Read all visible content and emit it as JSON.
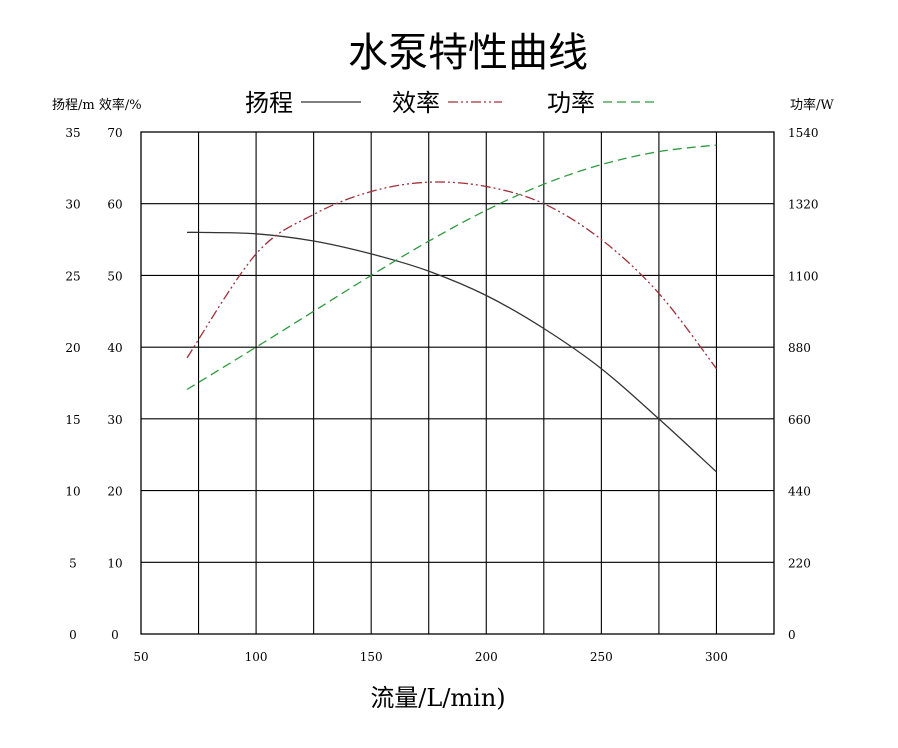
{
  "chart_data": {
    "type": "line",
    "title": "水泵特性曲线",
    "xlabel": "流量/L/min)",
    "ylabel_left": "扬程/m 效率/%",
    "ylabel_right": "功率/W",
    "xlim": [
      50,
      325
    ],
    "x_ticks": [
      50,
      100,
      150,
      200,
      250,
      300
    ],
    "y_head_ticks": [
      0,
      5,
      10,
      15,
      20,
      25,
      30,
      35
    ],
    "y_eff_ticks": [
      0,
      10,
      20,
      30,
      40,
      50,
      60,
      70
    ],
    "y_power_ticks": [
      0,
      220,
      440,
      660,
      880,
      1100,
      1320,
      1540
    ],
    "ylim_head": [
      0,
      35
    ],
    "ylim_eff": [
      0,
      70
    ],
    "ylim_power": [
      0,
      1540
    ],
    "grid": true,
    "legend_position": "top",
    "series": [
      {
        "name": "扬程",
        "axis": "head",
        "color": "#333333",
        "style": "solid",
        "x": [
          70,
          75,
          100,
          125,
          150,
          175,
          200,
          225,
          250,
          275,
          300
        ],
        "y": [
          28.0,
          28.0,
          27.9,
          27.4,
          26.5,
          25.3,
          23.6,
          21.3,
          18.5,
          15.0,
          11.3
        ]
      },
      {
        "name": "效率",
        "axis": "eff",
        "color": "#a0303a",
        "style": "dash-dot-dot",
        "x": [
          70,
          100,
          125,
          150,
          175,
          200,
          225,
          250,
          275,
          300
        ],
        "y": [
          38.5,
          53.0,
          58.5,
          61.7,
          63.0,
          62.4,
          60.0,
          55.0,
          47.5,
          37.0
        ]
      },
      {
        "name": "功率",
        "axis": "power",
        "color": "#2e9a3e",
        "style": "dash",
        "x": [
          70,
          100,
          125,
          150,
          175,
          200,
          225,
          250,
          275,
          300
        ],
        "y": [
          750,
          880,
          990,
          1100,
          1205,
          1300,
          1380,
          1440,
          1480,
          1500
        ]
      }
    ]
  }
}
